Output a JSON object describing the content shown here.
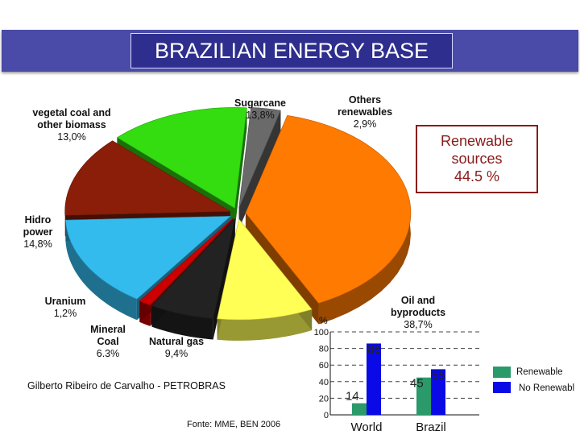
{
  "header": {
    "title": "BRAZILIAN ENERGY BASE"
  },
  "callout": {
    "line1": "Renewable",
    "line2": "sources",
    "line3": "44.5 %"
  },
  "credits": {
    "author": "Gilberto Ribeiro de Carvalho - PETROBRAS",
    "source": "Fonte: MME, BEN 2006"
  },
  "colors": {
    "renewable": "#2a9a6a",
    "non_renewable": "#0a0ae6",
    "title_bar": "#2e2e8e"
  },
  "chart_data": [
    {
      "type": "pie",
      "slices": [
        {
          "name": "vegetal coal and other biomass",
          "value_label": "13,0%",
          "value": 13.0,
          "color": "#8a1e08"
        },
        {
          "name": "Sugarcane",
          "value_label": "13,8%",
          "value": 13.8,
          "color": "#33dd10"
        },
        {
          "name": "Others renewables",
          "value_label": "2,9%",
          "value": 2.9,
          "color": "#6a6a6a"
        },
        {
          "name": "Oil and byproducts",
          "value_label": "38,7%",
          "value": 38.7,
          "color": "#ff7a00"
        },
        {
          "name": "Natural gas",
          "value_label": "9,4%",
          "value": 9.4,
          "color": "#ffff55"
        },
        {
          "name": "Mineral Coal",
          "value_label": "6.3%",
          "value": 6.3,
          "color": "#222222"
        },
        {
          "name": "Uranium",
          "value_label": "1,2%",
          "value": 1.2,
          "color": "#cc0000"
        },
        {
          "name": "Hidro power",
          "value_label": "14,8%",
          "value": 14.8,
          "color": "#33bbee"
        }
      ]
    },
    {
      "type": "bar",
      "categories": [
        "World",
        "Brazil"
      ],
      "series": [
        {
          "name": "Renewable",
          "values": [
            14,
            45
          ],
          "labels": [
            "14",
            "45"
          ]
        },
        {
          "name": "No Renewabl",
          "values": [
            86,
            55
          ],
          "labels": [
            "86",
            "55"
          ]
        }
      ],
      "ylabel": "%",
      "ylim": [
        0,
        100
      ],
      "yticks": [
        "0",
        "20",
        "40",
        "60",
        "80",
        "100"
      ],
      "grid": true,
      "legend": "right"
    }
  ]
}
